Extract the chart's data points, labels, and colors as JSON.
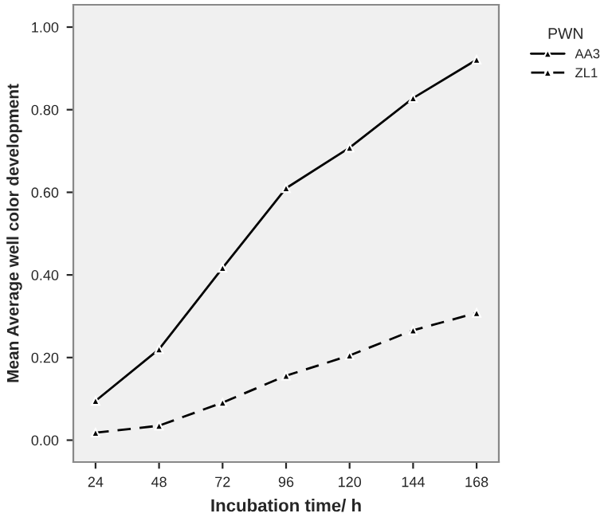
{
  "chart_data": {
    "type": "line",
    "xlabel": "Incubation time/ h",
    "ylabel": "Mean Average well color development",
    "legend_title": "PWN",
    "legend": "top right",
    "marker": "triangle",
    "grid": false,
    "categories": [
      "24",
      "48",
      "72",
      "96",
      "120",
      "144",
      "168"
    ],
    "ylim": [
      -0.053,
      1.054
    ],
    "yticks": [
      {
        "value": 0,
        "label": "0.00"
      },
      {
        "value": 0.2,
        "label": "0.20"
      },
      {
        "value": 0.4,
        "label": "0.40"
      },
      {
        "value": 0.6,
        "label": "0.60"
      },
      {
        "value": 0.8,
        "label": "0.80"
      },
      {
        "value": 1.0,
        "label": "1.00"
      }
    ],
    "series": [
      {
        "name": "AA3",
        "color": "#000000",
        "line_style": "solid",
        "values": [
          0.095,
          0.22,
          0.417,
          0.61,
          0.708,
          0.828,
          0.921
        ]
      },
      {
        "name": "ZL1",
        "color": "#000000",
        "line_style": "dashed",
        "values": [
          0.018,
          0.035,
          0.091,
          0.156,
          0.205,
          0.266,
          0.308
        ]
      }
    ]
  }
}
